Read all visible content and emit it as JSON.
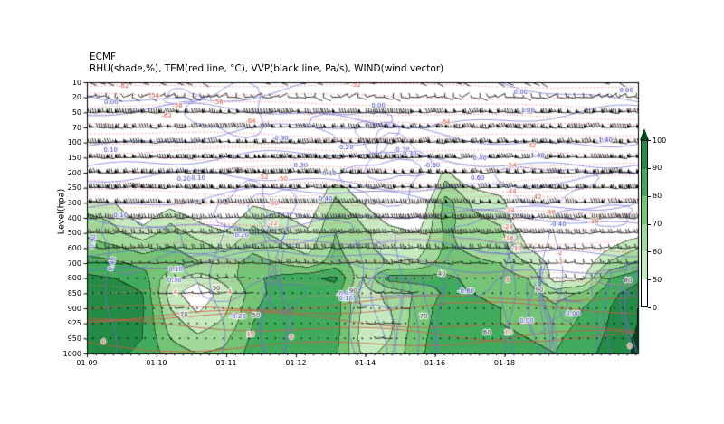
{
  "chart_data": {
    "type": "heatmap",
    "title": "ECMF",
    "subtitle": "RHU(shade,%), TEM(red line, °C), VVP(black line, Pa/s), WIND(wind vector)",
    "ylabel": "Level(hpa)",
    "y_levels_hpa": [
      "10",
      "20",
      "50",
      "70",
      "100",
      "150",
      "200",
      "250",
      "300",
      "400",
      "500",
      "600",
      "700",
      "800",
      "850",
      "900",
      "925",
      "950",
      "1000"
    ],
    "x_ticks": [
      {
        "label": "01-09",
        "f": 0.0
      },
      {
        "label": "01-10",
        "f": 0.1264
      },
      {
        "label": "01-11",
        "f": 0.2529
      },
      {
        "label": "01-12",
        "f": 0.3793
      },
      {
        "label": "01-14",
        "f": 0.5049
      },
      {
        "label": "01-16",
        "f": 0.6314
      },
      {
        "label": "01-18",
        "f": 0.7578
      }
    ],
    "minor_ticks_per_major": 8,
    "shading": {
      "field": "RHU",
      "unit": "%",
      "thresholds": [
        50,
        60,
        70,
        80,
        90,
        96
      ],
      "colors": [
        "#ffffff",
        "#c7e9c0",
        "#a1d99b",
        "#74c476",
        "#41ab5d",
        "#238b45",
        "#00441b"
      ]
    },
    "colorbar": {
      "tick_labels": [
        "100",
        "90",
        "80",
        "70",
        "60",
        "50",
        "0"
      ],
      "segment_colors_top_to_bottom": [
        "#238b45",
        "#41ab5d",
        "#74c476",
        "#a1d99b",
        "#c7e9c0",
        "#ffffff"
      ],
      "arrow_color": "#00441b"
    },
    "rhu_grid": {
      "cols": 21,
      "rows_by_level": [
        [
          5,
          5,
          5,
          5,
          5,
          5,
          5,
          5,
          5,
          5,
          5,
          5,
          5,
          5,
          5,
          5,
          5,
          5,
          5,
          5,
          5
        ],
        [
          5,
          5,
          5,
          5,
          5,
          5,
          5,
          5,
          5,
          5,
          5,
          5,
          5,
          5,
          5,
          5,
          5,
          5,
          5,
          5,
          5
        ],
        [
          6,
          6,
          6,
          6,
          6,
          6,
          6,
          6,
          6,
          6,
          6,
          6,
          6,
          6,
          6,
          6,
          6,
          6,
          6,
          6,
          6
        ],
        [
          8,
          8,
          8,
          8,
          8,
          8,
          8,
          8,
          8,
          8,
          8,
          8,
          8,
          8,
          8,
          8,
          8,
          8,
          8,
          8,
          8
        ],
        [
          10,
          10,
          10,
          10,
          10,
          10,
          10,
          10,
          10,
          10,
          10,
          10,
          10,
          10,
          10,
          10,
          10,
          10,
          10,
          10,
          10
        ],
        [
          12,
          12,
          12,
          12,
          12,
          12,
          12,
          12,
          12,
          12,
          12,
          12,
          12,
          12,
          12,
          12,
          12,
          12,
          12,
          12,
          12
        ],
        [
          15,
          15,
          15,
          15,
          15,
          15,
          15,
          15,
          15,
          22,
          18,
          15,
          15,
          55,
          30,
          20,
          15,
          15,
          15,
          15,
          15
        ],
        [
          25,
          22,
          20,
          20,
          20,
          20,
          22,
          25,
          30,
          58,
          40,
          25,
          22,
          65,
          50,
          45,
          25,
          20,
          18,
          18,
          20
        ],
        [
          55,
          50,
          35,
          45,
          35,
          30,
          48,
          45,
          40,
          62,
          50,
          35,
          35,
          75,
          58,
          55,
          30,
          22,
          22,
          25,
          30
        ],
        [
          62,
          58,
          45,
          58,
          48,
          40,
          58,
          52,
          46,
          68,
          58,
          45,
          42,
          75,
          62,
          58,
          35,
          25,
          26,
          30,
          36
        ],
        [
          68,
          62,
          55,
          64,
          57,
          52,
          62,
          58,
          52,
          70,
          62,
          55,
          50,
          72,
          65,
          62,
          45,
          34,
          34,
          40,
          46
        ],
        [
          75,
          72,
          66,
          71,
          64,
          58,
          68,
          62,
          57,
          72,
          62,
          57,
          55,
          72,
          68,
          64,
          50,
          40,
          38,
          50,
          60
        ],
        [
          85,
          82,
          77,
          79,
          71,
          66,
          74,
          70,
          64,
          75,
          64,
          60,
          62,
          75,
          72,
          70,
          60,
          45,
          42,
          62,
          72
        ],
        [
          92,
          90,
          85,
          62,
          54,
          64,
          78,
          83,
          88,
          92,
          60,
          85,
          85,
          82,
          78,
          75,
          70,
          45,
          48,
          80,
          88
        ],
        [
          93,
          96,
          90,
          55,
          42,
          55,
          75,
          85,
          82,
          85,
          56,
          62,
          72,
          82,
          80,
          78,
          75,
          65,
          72,
          88,
          94
        ],
        [
          92,
          95,
          91,
          60,
          48,
          58,
          78,
          88,
          86,
          85,
          58,
          60,
          74,
          85,
          82,
          80,
          78,
          72,
          80,
          90,
          96
        ],
        [
          92,
          93,
          90,
          65,
          55,
          62,
          80,
          88,
          86,
          85,
          56,
          58,
          76,
          85,
          83,
          80,
          78,
          75,
          82,
          91,
          96
        ],
        [
          91,
          92,
          90,
          70,
          62,
          68,
          82,
          88,
          87,
          84,
          55,
          60,
          77,
          86,
          84,
          82,
          80,
          78,
          85,
          92,
          97
        ],
        [
          90,
          91,
          89,
          75,
          70,
          72,
          84,
          88,
          87,
          82,
          58,
          62,
          78,
          86,
          85,
          83,
          82,
          80,
          87,
          93,
          97
        ]
      ]
    },
    "tem_contours": {
      "dash_color": "#ee8276",
      "solid_color": "#cf5a3d",
      "label_color": "#cf4a38",
      "labels": [
        {
          "x": 0.067,
          "y": 0.013,
          "t": "-62"
        },
        {
          "x": 0.122,
          "y": 0.05,
          "t": "-54"
        },
        {
          "x": 0.164,
          "y": 0.087,
          "t": "-58"
        },
        {
          "x": 0.238,
          "y": 0.073,
          "t": "-56"
        },
        {
          "x": 0.145,
          "y": 0.123,
          "t": "-62"
        },
        {
          "x": 0.297,
          "y": 0.143,
          "t": "-64"
        },
        {
          "x": 0.488,
          "y": 0.01,
          "t": "-52"
        },
        {
          "x": 0.32,
          "y": 0.35,
          "t": "-52"
        },
        {
          "x": 0.355,
          "y": 0.357,
          "t": "-50"
        },
        {
          "x": 0.65,
          "y": 0.147,
          "t": "-64"
        },
        {
          "x": 0.806,
          "y": 0.233,
          "t": "-62"
        },
        {
          "x": 0.77,
          "y": 0.307,
          "t": "-54"
        },
        {
          "x": 0.77,
          "y": 0.403,
          "t": "-44"
        },
        {
          "x": 0.816,
          "y": 0.423,
          "t": "-42"
        },
        {
          "x": 0.841,
          "y": 0.48,
          "t": "-46"
        },
        {
          "x": 0.767,
          "y": 0.473,
          "t": "-34"
        },
        {
          "x": 0.338,
          "y": 0.447,
          "t": "-30"
        },
        {
          "x": 0.92,
          "y": 0.513,
          "t": "-28"
        },
        {
          "x": 0.764,
          "y": 0.533,
          "t": "-24"
        },
        {
          "x": 0.337,
          "y": 0.52,
          "t": "-22"
        },
        {
          "x": 0.765,
          "y": 0.577,
          "t": "-16"
        },
        {
          "x": 0.78,
          "y": 0.613,
          "t": "-10"
        },
        {
          "x": 0.857,
          "y": 0.63,
          "t": "-2"
        },
        {
          "x": 0.86,
          "y": 0.663,
          "t": "2"
        },
        {
          "x": 0.161,
          "y": 0.773,
          "t": "4"
        },
        {
          "x": 0.259,
          "y": 0.773,
          "t": "4"
        },
        {
          "x": 0.764,
          "y": 0.73,
          "t": "6"
        },
        {
          "x": 0.03,
          "y": 0.957,
          "t": "8"
        },
        {
          "x": 0.297,
          "y": 0.93,
          "t": "10"
        },
        {
          "x": 0.371,
          "y": 0.94,
          "t": "8"
        },
        {
          "x": 0.765,
          "y": 0.923,
          "t": "10"
        },
        {
          "x": 0.985,
          "y": 0.973,
          "t": "8"
        }
      ]
    },
    "vvp_contours": {
      "line_color": "#6b6bd8",
      "label_color": "#2e2ebc",
      "labels": [
        {
          "x": 0.044,
          "y": 0.073,
          "t": "0.00"
        },
        {
          "x": 0.043,
          "y": 0.25,
          "t": "0.10"
        },
        {
          "x": 0.529,
          "y": 0.087,
          "t": "0.00"
        },
        {
          "x": 0.787,
          "y": 0.037,
          "t": "0.00"
        },
        {
          "x": 0.979,
          "y": 0.03,
          "t": "0.00"
        },
        {
          "x": 0.8,
          "y": 0.103,
          "t": "1.00"
        },
        {
          "x": 0.939,
          "y": 0.213,
          "t": "-1.40"
        },
        {
          "x": 0.818,
          "y": 0.27,
          "t": "1.40"
        },
        {
          "x": 0.713,
          "y": 0.28,
          "t": "0.40"
        },
        {
          "x": 0.709,
          "y": 0.353,
          "t": "0.60"
        },
        {
          "x": 0.351,
          "y": 0.207,
          "t": "-0.30"
        },
        {
          "x": 0.471,
          "y": 0.24,
          "t": "0.20"
        },
        {
          "x": 0.571,
          "y": 0.25,
          "t": "-0.20"
        },
        {
          "x": 0.438,
          "y": 0.337,
          "t": "-0.10"
        },
        {
          "x": 0.388,
          "y": 0.307,
          "t": "0.30"
        },
        {
          "x": 0.626,
          "y": 0.307,
          "t": "-0.60"
        },
        {
          "x": 0.433,
          "y": 0.43,
          "t": "0.40"
        },
        {
          "x": 0.176,
          "y": 0.357,
          "t": "0.20"
        },
        {
          "x": 0.2,
          "y": 0.353,
          "t": "-0.10"
        },
        {
          "x": 0.061,
          "y": 0.49,
          "t": "0.10"
        },
        {
          "x": 0.279,
          "y": 0.563,
          "t": "-0.20"
        },
        {
          "x": 0.161,
          "y": 0.69,
          "t": "0.10"
        },
        {
          "x": 0.159,
          "y": 0.73,
          "t": "0.30"
        },
        {
          "x": 0.046,
          "y": 0.67,
          "t": "0.40",
          "r": -75
        },
        {
          "x": 0.468,
          "y": 0.78,
          "t": "-0.40"
        },
        {
          "x": 0.274,
          "y": 0.863,
          "t": "-0.20"
        },
        {
          "x": 0.47,
          "y": 0.797,
          "t": "0.10"
        },
        {
          "x": 0.688,
          "y": 0.77,
          "t": "-0.60"
        },
        {
          "x": 0.798,
          "y": 0.88,
          "t": "0.00"
        },
        {
          "x": 0.882,
          "y": 0.853,
          "t": "0.00"
        },
        {
          "x": 0.011,
          "y": 0.587,
          "t": "0.90",
          "r": -80
        },
        {
          "x": 0.586,
          "y": 0.263,
          "t": "0.30"
        },
        {
          "x": 0.855,
          "y": 0.523,
          "t": "-0.40"
        }
      ]
    },
    "rhu_contour_labels": {
      "label_color": "#1a1a1a",
      "labels": [
        {
          "x": 0.235,
          "y": 0.76,
          "t": "50"
        },
        {
          "x": 0.611,
          "y": 0.863,
          "t": "70"
        },
        {
          "x": 0.726,
          "y": 0.923,
          "t": "60"
        },
        {
          "x": 0.644,
          "y": 0.707,
          "t": "40"
        },
        {
          "x": 0.821,
          "y": 0.767,
          "t": "90"
        },
        {
          "x": 0.982,
          "y": 0.73,
          "t": "80"
        },
        {
          "x": 0.307,
          "y": 0.86,
          "t": "50"
        },
        {
          "x": 0.483,
          "y": 0.77,
          "t": "90"
        },
        {
          "x": 0.176,
          "y": 0.857,
          "t": "70"
        }
      ]
    },
    "wind_barbs": {
      "color": "#000000",
      "row_speeds_kt": [
        8,
        10,
        50,
        55,
        60,
        68,
        70,
        62,
        45,
        35,
        28,
        18,
        12,
        8,
        5,
        4,
        4,
        3,
        3
      ]
    }
  }
}
